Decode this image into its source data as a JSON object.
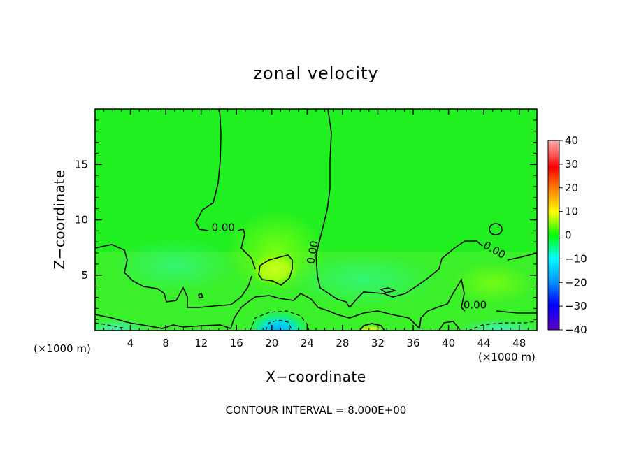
{
  "chart_data": {
    "type": "heatmap",
    "title": "zonal velocity",
    "xlabel": "X−coordinate",
    "ylabel": "Z−coordinate",
    "x_unit_left": "(×1000 m)",
    "x_unit_right": "(×1000 m)",
    "xlim": [
      0,
      50
    ],
    "ylim": [
      0,
      20
    ],
    "x_ticks": [
      4,
      8,
      12,
      16,
      20,
      24,
      28,
      32,
      36,
      40,
      44,
      48
    ],
    "y_ticks": [
      5,
      10,
      15
    ],
    "colorbar": {
      "ticks": [
        40,
        30,
        20,
        10,
        0,
        -10,
        -20,
        -30,
        -40
      ],
      "tick_labels": [
        "40",
        "30",
        "20",
        "10",
        "0",
        "−10",
        "−20",
        "−30",
        "−40"
      ],
      "range": [
        -40,
        40
      ],
      "colors": [
        "#ffb0b0",
        "#ff3030",
        "#ff0000",
        "#ff9900",
        "#ffff00",
        "#00ff00",
        "#00ffff",
        "#0090ff",
        "#0000ff",
        "#6000c0"
      ]
    },
    "contour_interval_text": "CONTOUR INTERVAL = 8.000E+00",
    "contour_labels": [
      {
        "text": "0.00",
        "x": 14.5,
        "z": 9.0
      },
      {
        "text": "0.00",
        "x": 25.0,
        "z": 7.0
      },
      {
        "text": "0.00",
        "x": 45.0,
        "z": 7.0
      },
      {
        "text": "0.00",
        "x": 43.0,
        "z": 2.0
      }
    ],
    "field_features": [
      {
        "x": 21,
        "z": 0.3,
        "value": -20
      },
      {
        "x": 19,
        "z": 0.5,
        "value": -8
      },
      {
        "x": 22,
        "z": 5.5,
        "value": 8
      },
      {
        "x": 30,
        "z": 0.2,
        "value": 6
      },
      {
        "x": 2,
        "z": 0.3,
        "value": -7
      },
      {
        "x": 46,
        "z": 0.3,
        "value": -7
      }
    ]
  }
}
